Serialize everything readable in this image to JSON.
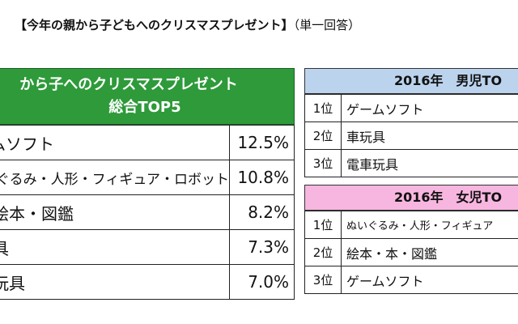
{
  "title": {
    "main": "【今年の親から子どもへのクリスマスプレゼント】",
    "sub": "（単一回答）"
  },
  "overall": {
    "header_line1": "から子へのクリスマスプレゼント",
    "header_line2": "総合TOP5",
    "rows": [
      {
        "name": "ムソフト",
        "pct": "12.5%"
      },
      {
        "name": "ぐるみ・人形・フィギュア・ロボット",
        "pct": "10.8%"
      },
      {
        "name": "絵本・図鑑",
        "pct": "8.2%"
      },
      {
        "name": "具",
        "pct": "7.3%"
      },
      {
        "name": "玩具",
        "pct": "7.0%"
      }
    ]
  },
  "boys": {
    "header": "2016年　男児TO",
    "rows": [
      {
        "rank": "1位",
        "name": "ゲームソフト"
      },
      {
        "rank": "2位",
        "name": "車玩具"
      },
      {
        "rank": "3位",
        "name": "電車玩具"
      }
    ]
  },
  "girls": {
    "header": "2016年　女児TO",
    "rows": [
      {
        "rank": "1位",
        "name": "ぬいぐるみ・人形・フィギュア"
      },
      {
        "rank": "2位",
        "name": "絵本・本・図鑑"
      },
      {
        "rank": "3位",
        "name": "ゲームソフト"
      }
    ]
  },
  "colors": {
    "overall_header": "#2e9a3a",
    "boys_header": "#bcd3ee",
    "girls_header": "#f7b6df"
  }
}
